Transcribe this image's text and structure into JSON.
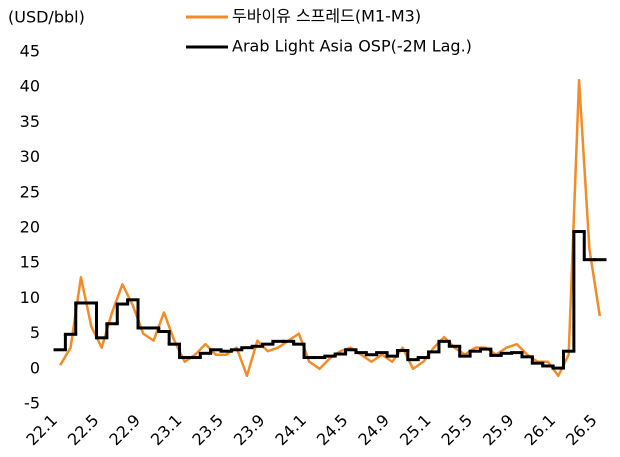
{
  "chart_data": {
    "type": "line",
    "y_axis_label": "(USD/bbl)",
    "categories": [
      "22.1",
      null,
      null,
      null,
      "22.5",
      null,
      null,
      null,
      "22.9",
      null,
      null,
      null,
      "23.1",
      null,
      null,
      null,
      "23.5",
      null,
      null,
      null,
      "23.9",
      null,
      null,
      null,
      "24.1",
      null,
      null,
      null,
      "24.5",
      null,
      null,
      null,
      "24.9",
      null,
      null,
      null,
      "25.1",
      null,
      null,
      null,
      "25.5",
      null,
      null,
      null,
      "25.9",
      null,
      null,
      null,
      "26.1",
      null,
      null,
      null,
      "26.5"
    ],
    "series": [
      {
        "name": "두바이유 스프레드(M1-M3)",
        "color": "#f28c28",
        "style": "line",
        "values": [
          0.5,
          3,
          13,
          6,
          3,
          8,
          12,
          9,
          5,
          4,
          8,
          4,
          1,
          2,
          3.5,
          2,
          2,
          3,
          -1,
          4,
          2.5,
          3,
          4,
          5,
          1,
          0,
          1.5,
          2.5,
          3,
          2,
          1,
          2,
          1,
          3,
          0,
          1,
          3,
          4.5,
          3,
          2,
          3,
          3,
          2,
          3,
          3.5,
          2,
          1,
          1,
          -1,
          2,
          41,
          17,
          7.5
        ]
      },
      {
        "name": "Arab Light Asia OSP(-2M Lag.)",
        "color": "#000000",
        "style": "step",
        "values": [
          2.7,
          4.9,
          9.35,
          9.35,
          4.4,
          6.4,
          9.2,
          9.8,
          5.8,
          5.8,
          5.3,
          3.5,
          1.6,
          1.6,
          2.2,
          2.7,
          2.5,
          2.7,
          3.0,
          3.2,
          3.5,
          3.9,
          3.9,
          3.5,
          1.6,
          1.6,
          1.8,
          2.1,
          2.7,
          2.3,
          2.0,
          2.3,
          1.8,
          2.6,
          1.3,
          1.6,
          2.4,
          3.9,
          3.2,
          1.8,
          2.5,
          2.8,
          1.9,
          2.2,
          2.3,
          1.7,
          0.8,
          0.4,
          0.1,
          2.5,
          19.5,
          15.5,
          15.5
        ]
      }
    ],
    "ylim": [
      -5,
      45
    ],
    "yticks": [
      -5,
      0,
      5,
      10,
      15,
      20,
      25,
      30,
      35,
      40,
      45
    ],
    "grid": false
  }
}
